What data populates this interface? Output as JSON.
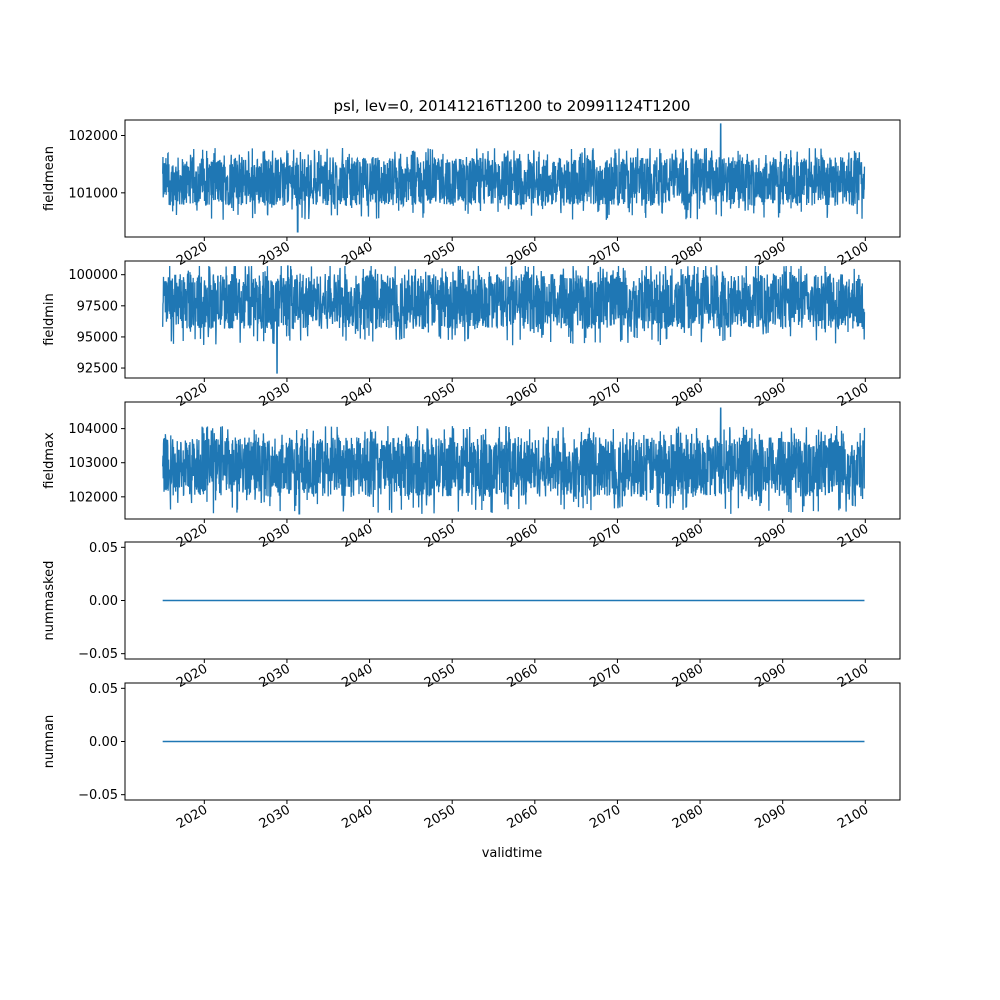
{
  "chart_data": {
    "type": "line",
    "title": "psl, lev=0, 20141216T1200 to 20991124T1200",
    "xlabel": "validtime",
    "x_range": [
      "2014-12-16T12:00",
      "2099-11-24T12:00"
    ],
    "x_ticks": [
      "2020",
      "2030",
      "2040",
      "2050",
      "2060",
      "2070",
      "2080",
      "2090",
      "2100"
    ],
    "line_color": "#1f77b4",
    "panels": [
      {
        "ylabel": "fieldmean",
        "yticks": [
          "101000",
          "102000"
        ],
        "ylim": [
          100230,
          102270
        ],
        "series": {
          "start_year": 2014.96,
          "end_year": 2099.9,
          "typical_low": 100750,
          "typical_high": 101650,
          "overall_min": 100320,
          "overall_max": 102200,
          "min_year": 2031.3,
          "max_year": 2082.5
        }
      },
      {
        "ylabel": "fieldmin",
        "yticks": [
          "92500",
          "95000",
          "97500",
          "100000"
        ],
        "ylim": [
          91700,
          101100
        ],
        "series": {
          "start_year": 2014.96,
          "end_year": 2099.9,
          "typical_low": 95500,
          "typical_high": 100200,
          "overall_min": 92100,
          "overall_max": 100700,
          "min_year": 2028.8,
          "max_year": 2082.0
        }
      },
      {
        "ylabel": "fieldmax",
        "yticks": [
          "102000",
          "103000",
          "104000"
        ],
        "ylim": [
          101350,
          104780
        ],
        "series": {
          "start_year": 2014.96,
          "end_year": 2099.9,
          "typical_low": 101950,
          "typical_high": 103800,
          "overall_min": 101500,
          "overall_max": 104600,
          "min_year": 2031.5,
          "max_year": 2082.5
        }
      },
      {
        "ylabel": "nummasked",
        "yticks": [
          "−0.05",
          "0.00",
          "0.05"
        ],
        "ylim": [
          -0.055,
          0.055
        ],
        "constant_value": 0
      },
      {
        "ylabel": "numnan",
        "yticks": [
          "−0.05",
          "0.00",
          "0.05"
        ],
        "ylim": [
          -0.055,
          0.055
        ],
        "constant_value": 0
      }
    ]
  }
}
